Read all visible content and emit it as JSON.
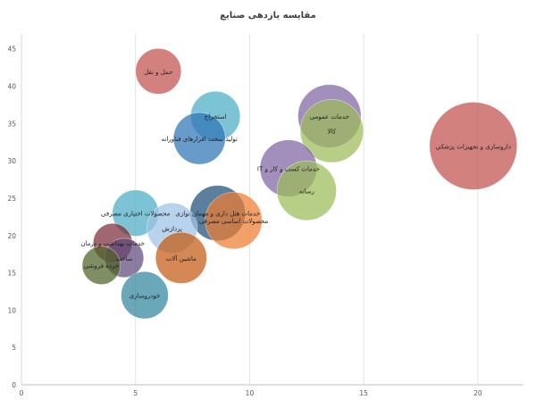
{
  "chart_data": {
    "type": "scatter",
    "subtype": "bubble",
    "title": "مقایسه یازدهی صنایع",
    "xlim": [
      0,
      22
    ],
    "ylim": [
      0,
      47
    ],
    "xticks": [
      0,
      5,
      10,
      15,
      20
    ],
    "yticks": [
      0,
      5,
      10,
      15,
      20,
      25,
      30,
      35,
      40,
      45
    ],
    "grid": {
      "x": true,
      "y": false
    },
    "legend": "none",
    "series": [
      {
        "label": "حمل و نقل",
        "x": 6.0,
        "y": 42,
        "size": 0.27,
        "color": "#C0504D"
      },
      {
        "label": "استخراج",
        "x": 8.5,
        "y": 36,
        "size": 0.32,
        "color": "#4BACC6"
      },
      {
        "label": "تولید سخت افزارهای فناورانه",
        "x": 7.8,
        "y": 33,
        "size": 0.35,
        "color": "#2E75B6"
      },
      {
        "label": "خدمات عمومی",
        "x": 13.5,
        "y": 36,
        "size": 0.52,
        "color": "#8064A2"
      },
      {
        "label": "کالا",
        "x": 13.6,
        "y": 34,
        "size": 0.52,
        "color": "#9BBB59"
      },
      {
        "label": "خدمات کسب و کار و IT",
        "x": 11.7,
        "y": 29,
        "size": 0.42,
        "color": "#8064A2"
      },
      {
        "label": "داروسازی و تجهیزات پزشکی",
        "x": 19.8,
        "y": 32,
        "size": 1.0,
        "color": "#C0504D"
      },
      {
        "label": "رسانه",
        "x": 12.5,
        "y": 26,
        "size": 0.46,
        "color": "#9BBB59"
      },
      {
        "label": "خدمات هتل داری و مهمان نوازی",
        "x": 8.6,
        "y": 23,
        "size": 0.4,
        "color": "#1F4E79"
      },
      {
        "label": "محصولات اساسی مصرفی",
        "x": 9.3,
        "y": 22,
        "size": 0.42,
        "color": "#ED7D31"
      },
      {
        "label": "محصولات اختیاری مصرفی",
        "x": 5.0,
        "y": 23,
        "size": 0.28,
        "color": "#4BACC6"
      },
      {
        "label": "پردازش",
        "x": 6.6,
        "y": 21,
        "size": 0.33,
        "color": "#9DC3E6"
      },
      {
        "label": "خدمات بهداشت و درمان",
        "x": 4.0,
        "y": 19,
        "size": 0.2,
        "color": "#7B2C3A"
      },
      {
        "label": "ساخت",
        "x": 4.5,
        "y": 17,
        "size": 0.2,
        "color": "#604A7B"
      },
      {
        "label": "خرده فروشی",
        "x": 3.5,
        "y": 16,
        "size": 0.19,
        "color": "#4F6228"
      },
      {
        "label": "ماشین آلات",
        "x": 7.0,
        "y": 17,
        "size": 0.34,
        "color": "#C55A11"
      },
      {
        "label": "خودروسازی",
        "x": 5.4,
        "y": 12,
        "size": 0.29,
        "color": "#31859C"
      }
    ]
  }
}
